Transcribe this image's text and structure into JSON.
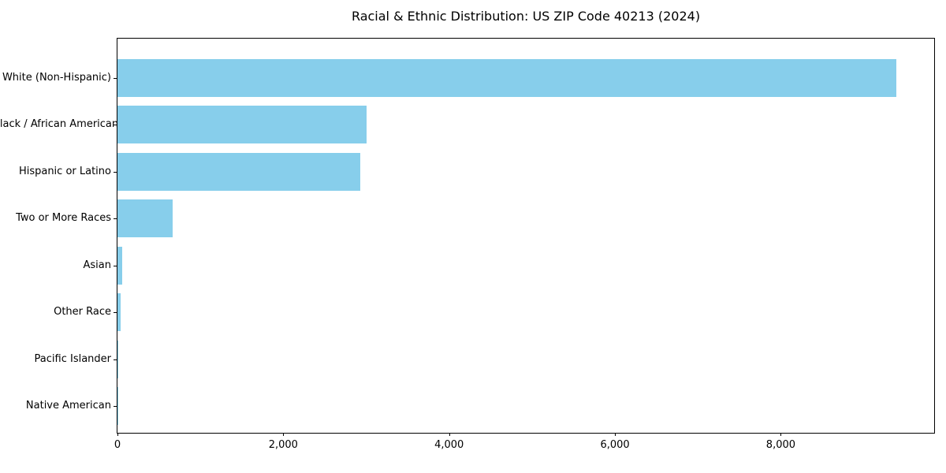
{
  "chart_data": {
    "type": "bar",
    "orientation": "horizontal",
    "title": "Racial & Ethnic Distribution: US ZIP Code 40213 (2024)",
    "categories": [
      "White (Non-Hispanic)",
      "Black / African American",
      "Hispanic or Latino",
      "Two or More Races",
      "Asian",
      "Other Race",
      "Pacific Islander",
      "Native American"
    ],
    "values": [
      9390,
      3000,
      2930,
      665,
      60,
      40,
      10,
      4
    ],
    "xlabel": "",
    "ylabel": "",
    "xlim": [
      0,
      9850
    ],
    "x_ticks": [
      0,
      2000,
      4000,
      6000,
      8000
    ],
    "x_tick_labels": [
      "0",
      "2,000",
      "4,000",
      "6,000",
      "8,000"
    ],
    "grid": false,
    "legend": null,
    "colors": {
      "bar": "#87ceeb",
      "axis": "#000000",
      "background": "#ffffff",
      "text": "#000000"
    }
  }
}
